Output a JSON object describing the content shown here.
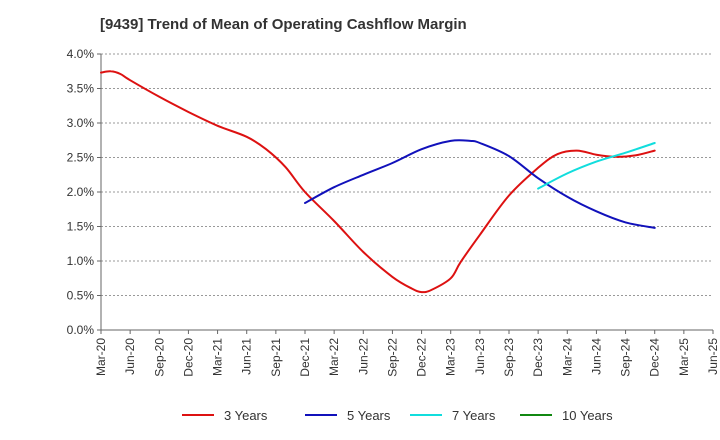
{
  "chart_data": {
    "type": "line",
    "title": "[9439]  Trend of Mean of Operating Cashflow Margin",
    "xlabel": "",
    "ylabel": "",
    "x_categories": [
      "Mar-20",
      "Jun-20",
      "Sep-20",
      "Dec-20",
      "Mar-21",
      "Jun-21",
      "Sep-21",
      "Dec-21",
      "Mar-22",
      "Jun-22",
      "Sep-22",
      "Dec-22",
      "Mar-23",
      "Jun-23",
      "Sep-23",
      "Dec-23",
      "Mar-24",
      "Jun-24",
      "Sep-24",
      "Dec-24",
      "Mar-25",
      "Jun-25"
    ],
    "y_ticks": [
      "0.0%",
      "0.5%",
      "1.0%",
      "1.5%",
      "2.0%",
      "2.5%",
      "3.0%",
      "3.5%",
      "4.0%"
    ],
    "ylim": [
      0,
      4.0
    ],
    "y_unit": "%",
    "grid": "horizontal dashed",
    "legend_position": "bottom",
    "series": [
      {
        "name": "3 Years",
        "color": "#dd1111",
        "points": [
          [
            "Mar-20",
            3.73
          ],
          [
            "Apr-20",
            3.75
          ],
          [
            "May-20",
            3.71
          ],
          [
            "Jun-20",
            3.62
          ],
          [
            "Sep-20",
            3.38
          ],
          [
            "Dec-20",
            3.16
          ],
          [
            "Mar-21",
            2.96
          ],
          [
            "Jun-21",
            2.8
          ],
          [
            "Aug-21",
            2.62
          ],
          [
            "Oct-21",
            2.36
          ],
          [
            "Dec-21",
            2.0
          ],
          [
            "Mar-22",
            1.58
          ],
          [
            "Jun-22",
            1.13
          ],
          [
            "Sep-22",
            0.77
          ],
          [
            "Nov-22",
            0.6
          ],
          [
            "Dec-22",
            0.55
          ],
          [
            "Jan-23",
            0.58
          ],
          [
            "Mar-23",
            0.75
          ],
          [
            "Apr-23",
            0.98
          ],
          [
            "Jun-23",
            1.38
          ],
          [
            "Sep-23",
            1.95
          ],
          [
            "Dec-23",
            2.35
          ],
          [
            "Feb-24",
            2.55
          ],
          [
            "Apr-24",
            2.6
          ],
          [
            "Jun-24",
            2.54
          ],
          [
            "Aug-24",
            2.51
          ],
          [
            "Oct-24",
            2.53
          ],
          [
            "Dec-24",
            2.6
          ]
        ]
      },
      {
        "name": "5 Years",
        "color": "#1111bb",
        "points": [
          [
            "Dec-21",
            1.84
          ],
          [
            "Mar-22",
            2.07
          ],
          [
            "Jun-22",
            2.25
          ],
          [
            "Sep-22",
            2.42
          ],
          [
            "Dec-22",
            2.62
          ],
          [
            "Mar-23",
            2.74
          ],
          [
            "May-23",
            2.74
          ],
          [
            "Jun-23",
            2.71
          ],
          [
            "Sep-23",
            2.52
          ],
          [
            "Dec-23",
            2.2
          ],
          [
            "Mar-24",
            1.93
          ],
          [
            "Jun-24",
            1.72
          ],
          [
            "Sep-24",
            1.56
          ],
          [
            "Dec-24",
            1.48
          ]
        ]
      },
      {
        "name": "7 Years",
        "color": "#11dddd",
        "points": [
          [
            "Dec-23",
            2.05
          ],
          [
            "Mar-24",
            2.27
          ],
          [
            "Jun-24",
            2.44
          ],
          [
            "Sep-24",
            2.57
          ],
          [
            "Dec-24",
            2.71
          ]
        ]
      },
      {
        "name": "10 Years",
        "color": "#118811",
        "points": []
      }
    ]
  }
}
